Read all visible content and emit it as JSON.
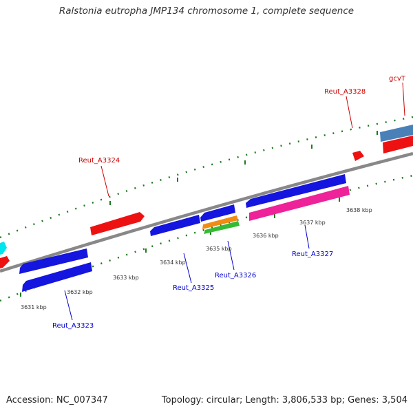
{
  "title": "Ralstonia eutropha JMP134 chromosome 1, complete sequence",
  "footer": {
    "accession": "Accession: NC_007347",
    "topology": "Topology: circular; Length: 3,806,533 bp; Genes: 3,504"
  },
  "colors": {
    "backbone": "#888888",
    "tick": "#1f7a1f",
    "label_forward": "#cc0000",
    "label_reverse": "#0000cc",
    "forward_gene": "#ee1111",
    "reverse_gene": "#1515e0",
    "rna_orange": "#f08c14",
    "rna_green": "#33bb33",
    "magenta_gene": "#ee2299",
    "steelblue_gene": "#4a80b8",
    "cyan_gene": "#00e5ee"
  },
  "scale_labels": [
    "3631 kbp",
    "3632 kbp",
    "3633 kbp",
    "3634 kbp",
    "3635 kbp",
    "3636 kbp",
    "3637 kbp",
    "3638 kbp"
  ],
  "gene_labels": {
    "gcvT": "gcvT",
    "reut_a3328": "Reut_A3328",
    "reut_a3324": "Reut_A3324",
    "reut_a3327": "Reut_A3327",
    "reut_a3326": "Reut_A3326",
    "reut_a3325": "Reut_A3325",
    "reut_a3323": "Reut_A3323"
  }
}
